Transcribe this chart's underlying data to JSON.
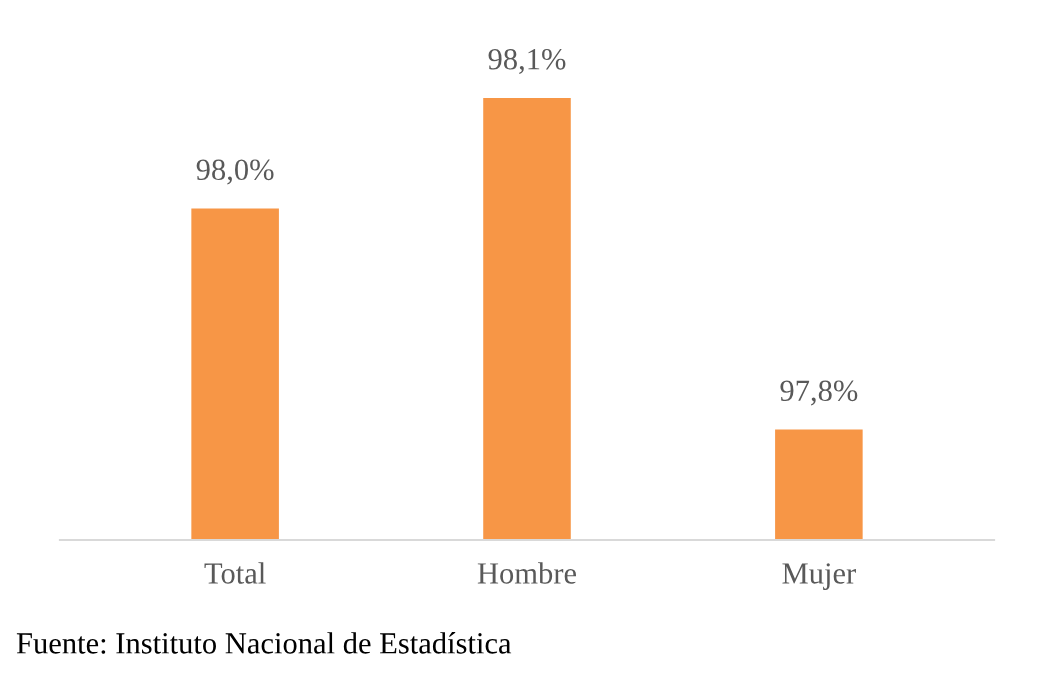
{
  "chart_data": {
    "type": "bar",
    "categories": [
      "Total",
      "Hombre",
      "Mujer"
    ],
    "values": [
      98.0,
      98.1,
      97.8
    ],
    "value_labels": [
      "98,0%",
      "98,1%",
      "97,8%"
    ],
    "color": "#f79646",
    "ylim": [
      97.7,
      98.1
    ],
    "tick_labels": "x",
    "grid": false,
    "legend": false,
    "annotations": [
      "Fuente: Instituto Nacional de Estadística"
    ]
  }
}
